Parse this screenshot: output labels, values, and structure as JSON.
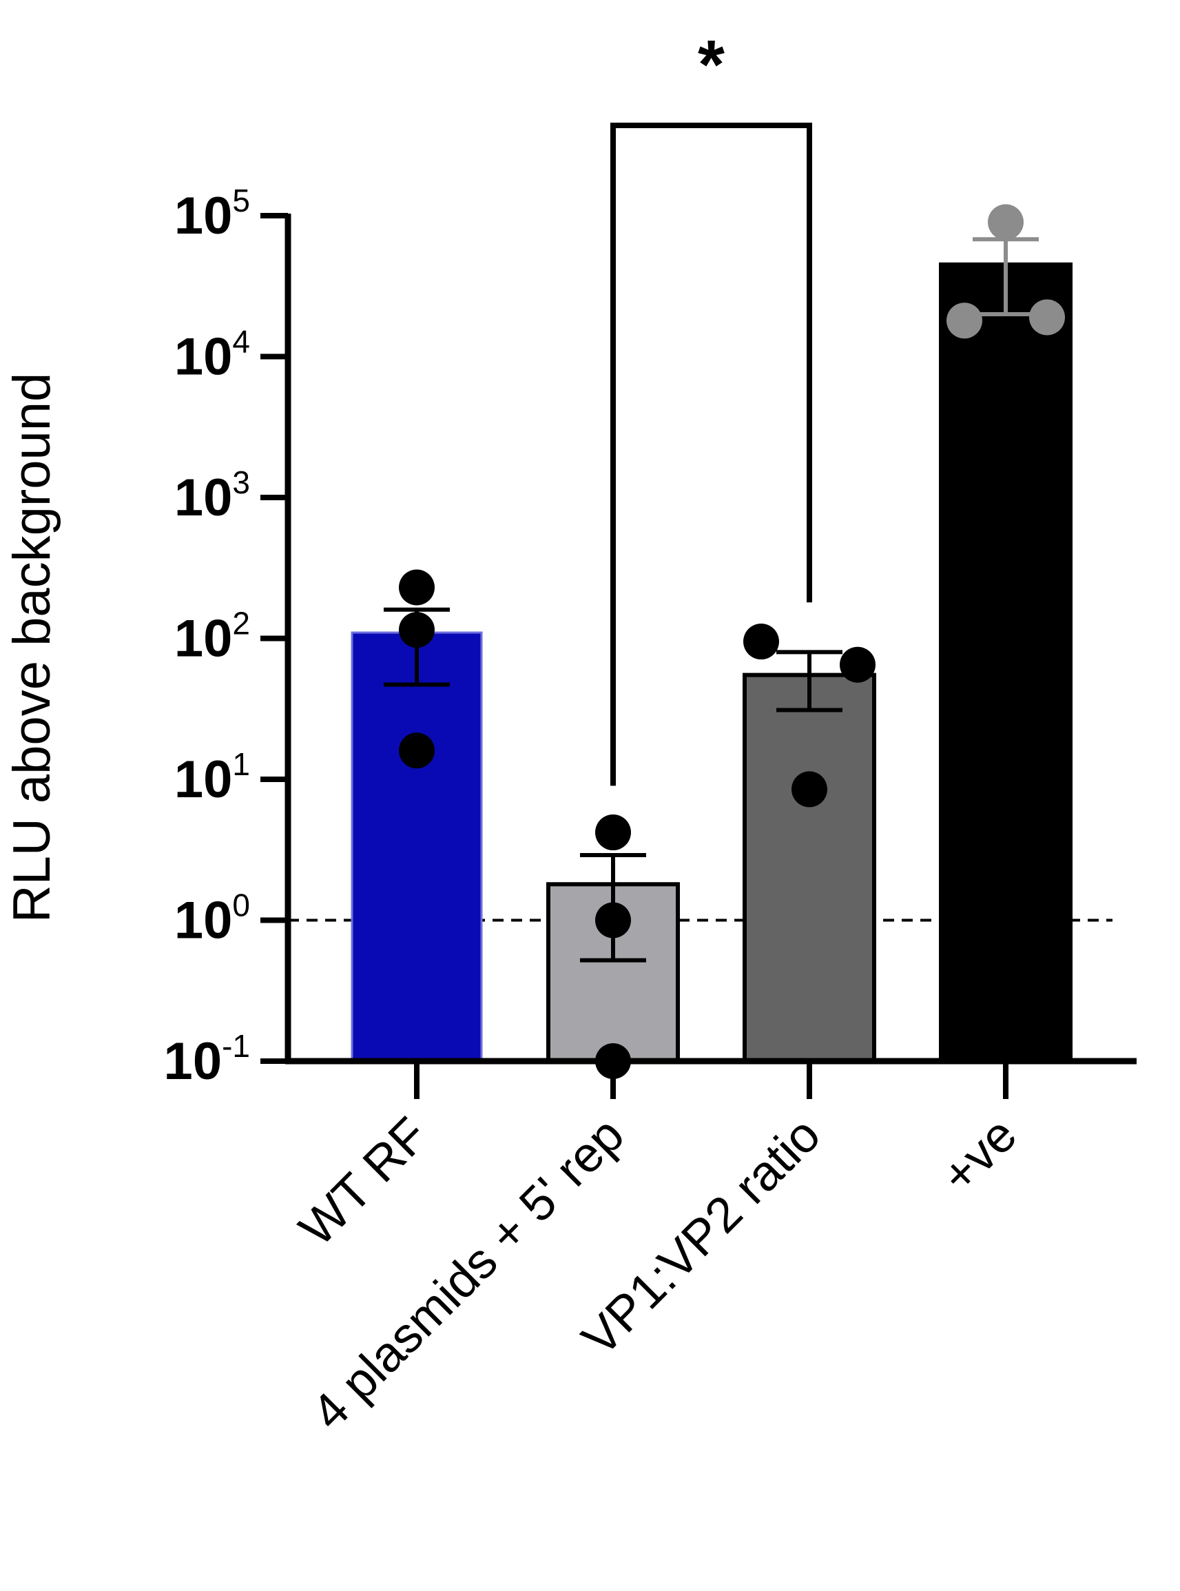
{
  "chart_data": {
    "type": "bar",
    "ylabel": "RLU above background",
    "yscale": "log",
    "ylim": [
      0.1,
      100000
    ],
    "ytick_bases": [
      "10",
      "10",
      "10",
      "10",
      "10",
      "10",
      "10"
    ],
    "ytick_exponents": [
      "-1",
      "0",
      "1",
      "2",
      "3",
      "4",
      "5"
    ],
    "reference_line": {
      "y": 1,
      "style": "dashed"
    },
    "categories": [
      "WT RF",
      "4 plasmids + 5' rep",
      "VP1:VP2 ratio",
      "+ve"
    ],
    "values": [
      110,
      1.8,
      55,
      45000
    ],
    "error_upper": [
      160,
      2.9,
      80,
      68000
    ],
    "error_lower": [
      47,
      0.52,
      31,
      20000
    ],
    "points": [
      [
        230,
        115,
        16
      ],
      [
        4.2,
        1.0,
        0.1
      ],
      [
        95,
        65,
        8.5
      ],
      [
        90000,
        18000,
        19000
      ]
    ],
    "bar_colors": [
      "#0a0ab4",
      "#a6a6aa",
      "#646464",
      "#000000"
    ],
    "point_colors": [
      "#000000",
      "#000000",
      "#000000",
      "#8c8c8c"
    ],
    "significance": {
      "from": 1,
      "to": 2,
      "label": "*"
    }
  }
}
